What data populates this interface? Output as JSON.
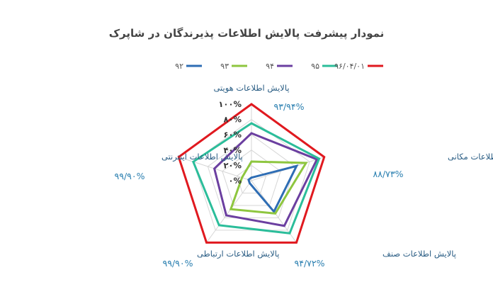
{
  "chart_data": {
    "type": "radar",
    "title": "نمودار پیشرفت پالایش اطلاعات پذیرندگان در شاپرک",
    "axes": [
      "پالایش اطلاعات هویتی",
      "پالایش اطلاعات مکانی",
      "پالایش اطلاعات صنف",
      "پالایش اطلاعات ارتباطی",
      "پالایش اطلاعات اینترنتی"
    ],
    "axis_value_labels": [
      "۹۳/۹۴%",
      "۸۸/۷۳%",
      "۹۴/۷۲%",
      "۹۹/۹۰%",
      "۹۹/۹۰%"
    ],
    "ticks": [
      "۰%",
      "۲۰%",
      "۴۰%",
      "۶۰%",
      "۸۰%",
      "۱۰۰%"
    ],
    "rmax": 100,
    "series": [
      {
        "name": "۹۲",
        "color": "#2e6db4",
        "values": [
          4,
          62,
          50,
          4,
          4
        ]
      },
      {
        "name": "۹۳",
        "color": "#8ec63f",
        "values": [
          25,
          75,
          53,
          46,
          13
        ]
      },
      {
        "name": "۹۴",
        "color": "#6b3fa0",
        "values": [
          62,
          90,
          73,
          56,
          51
        ]
      },
      {
        "name": "۹۵",
        "color": "#2bbd9a",
        "values": [
          75,
          93,
          85,
          72,
          80
        ]
      },
      {
        "name": "۹۶/۰۴/۰۱",
        "color": "#e0191f",
        "values": [
          100,
          100,
          100,
          100,
          100
        ]
      }
    ]
  }
}
